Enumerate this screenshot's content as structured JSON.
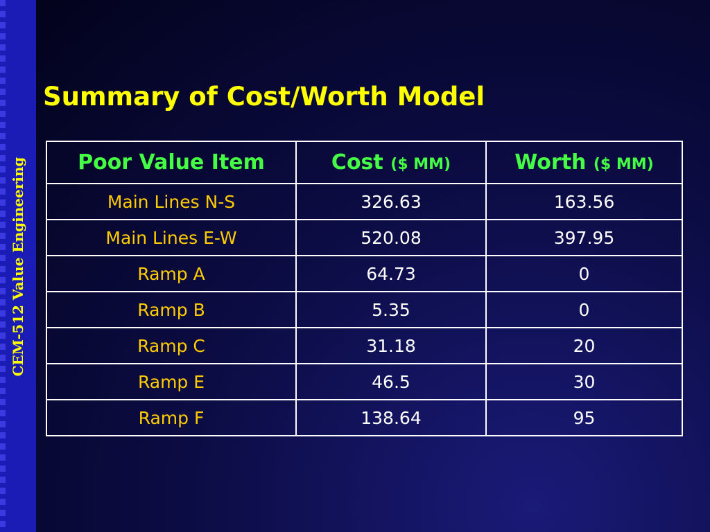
{
  "side_label": "CEM-512 Value Engineering",
  "title": "Summary of Cost/Worth Model",
  "table": {
    "headers": {
      "item": "Poor Value Item",
      "cost": "Cost",
      "cost_unit": "($ MM)",
      "worth": "Worth",
      "worth_unit": "($ MM)"
    },
    "rows": [
      {
        "item": "Main Lines N-S",
        "cost": "326.63",
        "worth": "163.56"
      },
      {
        "item": "Main Lines E-W",
        "cost": "520.08",
        "worth": "397.95"
      },
      {
        "item": "Ramp A",
        "cost": "64.73",
        "worth": "0"
      },
      {
        "item": "Ramp B",
        "cost": "5.35",
        "worth": "0"
      },
      {
        "item": "Ramp C",
        "cost": "31.18",
        "worth": "20"
      },
      {
        "item": "Ramp E",
        "cost": "46.5",
        "worth": "30"
      },
      {
        "item": "Ramp F",
        "cost": "138.64",
        "worth": "95"
      }
    ]
  },
  "colors": {
    "title": "#ffff00",
    "header_text": "#44ff44",
    "item_text": "#ffcc00",
    "value_text": "#ffffff",
    "sidebar": "#1b1bb5"
  }
}
